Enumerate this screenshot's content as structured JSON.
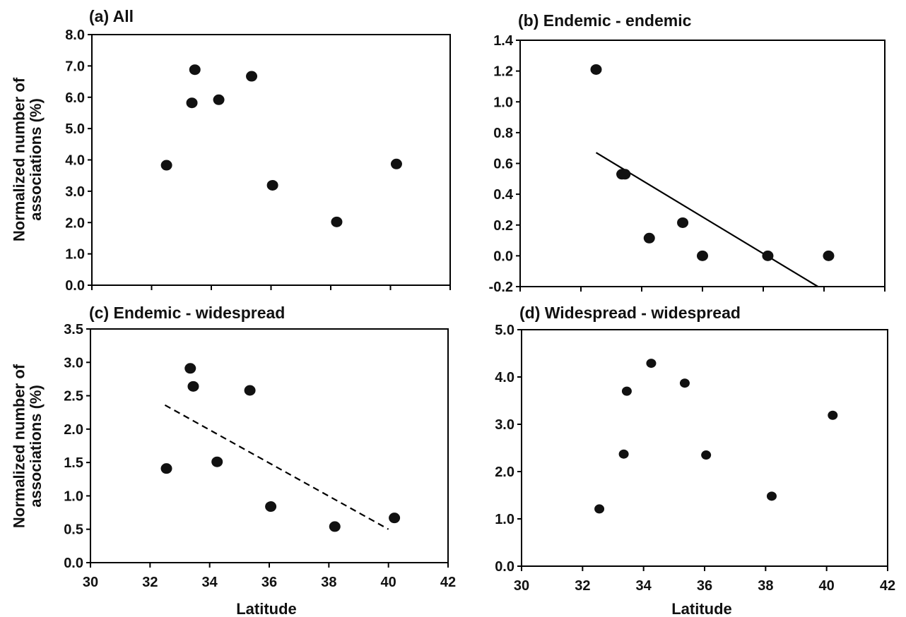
{
  "chart_data": [
    {
      "type": "scatter",
      "title": "(a) All",
      "ylabel": "Normalized number of associations (%)",
      "xlabel": "",
      "xlim": [
        30,
        42
      ],
      "ylim": [
        0,
        8
      ],
      "xticks": [],
      "yticks": [
        "0.0",
        "1.0",
        "2.0",
        "3.0",
        "4.0",
        "5.0",
        "6.0",
        "7.0",
        "8.0"
      ],
      "points": [
        {
          "x": 32.5,
          "y": 3.83
        },
        {
          "x": 33.35,
          "y": 5.82
        },
        {
          "x": 33.45,
          "y": 6.88
        },
        {
          "x": 34.25,
          "y": 5.92
        },
        {
          "x": 35.35,
          "y": 6.67
        },
        {
          "x": 36.05,
          "y": 3.19
        },
        {
          "x": 38.2,
          "y": 2.02
        },
        {
          "x": 40.2,
          "y": 3.87
        }
      ],
      "trendline": null
    },
    {
      "type": "scatter",
      "title": "(b) Endemic - endemic",
      "ylabel": "",
      "xlabel": "",
      "xlim": [
        30,
        42
      ],
      "ylim": [
        -0.2,
        1.4
      ],
      "xticks": [],
      "yticks": [
        "-0.2",
        "0.0",
        "0.2",
        "0.4",
        "0.6",
        "0.8",
        "1.0",
        "1.2",
        "1.4"
      ],
      "points": [
        {
          "x": 32.5,
          "y": 1.21
        },
        {
          "x": 33.35,
          "y": 0.53
        },
        {
          "x": 33.45,
          "y": 0.53
        },
        {
          "x": 34.25,
          "y": 0.115
        },
        {
          "x": 35.35,
          "y": 0.215
        },
        {
          "x": 36.0,
          "y": 0.0
        },
        {
          "x": 38.15,
          "y": 0.0
        },
        {
          "x": 40.15,
          "y": 0.0
        }
      ],
      "trendline": {
        "style": "solid",
        "x": [
          32.5,
          39.8
        ],
        "y": [
          0.67,
          -0.2
        ]
      }
    },
    {
      "type": "scatter",
      "title": "(c)   Endemic - widespread",
      "ylabel": "Normalized number of associations (%)",
      "xlabel": "Latitude",
      "xlim": [
        30,
        42
      ],
      "ylim": [
        0,
        3.5
      ],
      "xticks": [
        "30",
        "32",
        "34",
        "36",
        "38",
        "40",
        "42"
      ],
      "yticks": [
        "0.0",
        "0.5",
        "1.0",
        "1.5",
        "2.0",
        "2.5",
        "3.0",
        "3.5"
      ],
      "points": [
        {
          "x": 32.55,
          "y": 1.41
        },
        {
          "x": 33.35,
          "y": 2.91
        },
        {
          "x": 33.45,
          "y": 2.64
        },
        {
          "x": 34.25,
          "y": 1.51
        },
        {
          "x": 35.35,
          "y": 2.58
        },
        {
          "x": 36.05,
          "y": 0.84
        },
        {
          "x": 38.2,
          "y": 0.54
        },
        {
          "x": 40.2,
          "y": 0.67
        }
      ],
      "trendline": {
        "style": "dashed",
        "x": [
          32.5,
          40.0
        ],
        "y": [
          2.36,
          0.5
        ]
      }
    },
    {
      "type": "scatter",
      "title": "(d)    Widespread - widespread",
      "ylabel": "",
      "xlabel": "Latitude",
      "xlim": [
        30,
        42
      ],
      "ylim": [
        0,
        5
      ],
      "xticks": [
        "30",
        "32",
        "34",
        "36",
        "38",
        "40",
        "42"
      ],
      "yticks": [
        "0.0",
        "1.0",
        "2.0",
        "3.0",
        "4.0",
        "5.0"
      ],
      "points": [
        {
          "x": 32.55,
          "y": 1.21
        },
        {
          "x": 33.35,
          "y": 2.37
        },
        {
          "x": 33.45,
          "y": 3.7
        },
        {
          "x": 34.25,
          "y": 4.29
        },
        {
          "x": 35.35,
          "y": 3.87
        },
        {
          "x": 36.05,
          "y": 2.35
        },
        {
          "x": 38.2,
          "y": 1.48
        },
        {
          "x": 40.2,
          "y": 3.19
        }
      ],
      "trendline": null
    }
  ],
  "colors": {
    "marker": "#111111",
    "axis": "#000000",
    "background": "#ffffff"
  }
}
